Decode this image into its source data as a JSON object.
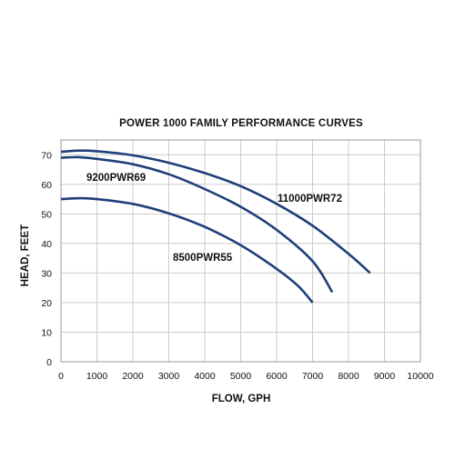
{
  "chart_data": {
    "type": "line",
    "title": "POWER 1000 FAMILY PERFORMANCE CURVES",
    "xlabel": "FLOW, GPH",
    "ylabel": "HEAD, FEET",
    "xlim": [
      0,
      10000
    ],
    "ylim": [
      0,
      75
    ],
    "xticks": [
      0,
      1000,
      2000,
      3000,
      4000,
      5000,
      6000,
      7000,
      8000,
      9000,
      10000
    ],
    "yticks": [
      0,
      10,
      20,
      30,
      40,
      50,
      60,
      70
    ],
    "grid": true,
    "legend": "none",
    "series_color": "#1f3f7a",
    "grid_color": "#cccccc",
    "series": [
      {
        "name": "11000PWR72",
        "x": [
          0,
          500,
          1000,
          2000,
          3000,
          4000,
          5000,
          6000,
          7000,
          8000,
          8600
        ],
        "y": [
          71,
          71.4,
          71.2,
          69.8,
          67.3,
          63.8,
          59.4,
          53.4,
          46,
          36.5,
          30
        ]
      },
      {
        "name": "9200PWR69",
        "x": [
          0,
          500,
          1000,
          2000,
          3000,
          4000,
          5000,
          6000,
          7000,
          7550
        ],
        "y": [
          69,
          69.2,
          68.6,
          66.8,
          63.4,
          58.4,
          52.4,
          44.6,
          34,
          23.5
        ]
      },
      {
        "name": "8500PWR55",
        "x": [
          0,
          500,
          1000,
          2000,
          3000,
          4000,
          5000,
          6000,
          6600,
          7000
        ],
        "y": [
          55,
          55.3,
          55,
          53.4,
          50.2,
          45.6,
          39.4,
          31.4,
          25.6,
          20
        ]
      }
    ]
  }
}
